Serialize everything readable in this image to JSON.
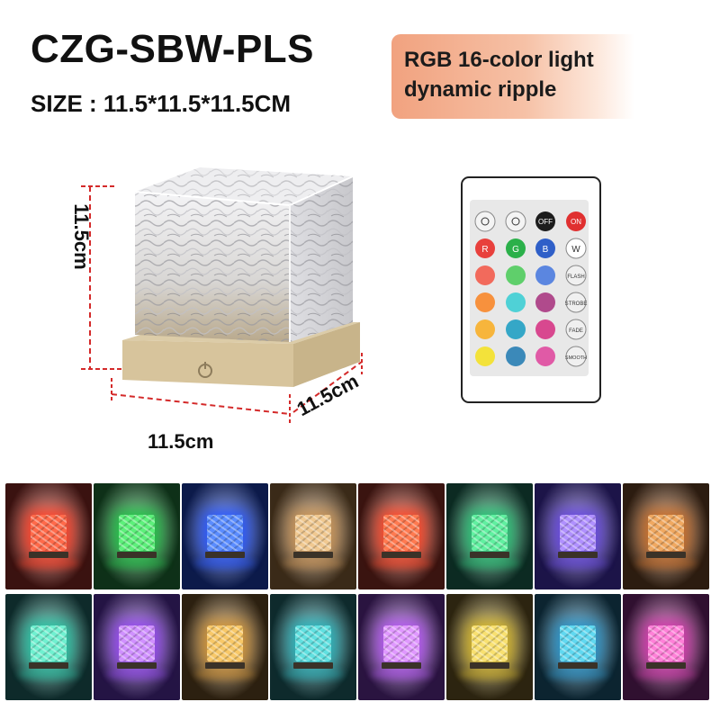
{
  "header": {
    "model": "CZG-SBW-PLS",
    "size": "SIZE : 11.5*11.5*11.5CM"
  },
  "badge": {
    "line1": "RGB 16-color light",
    "line2": "dynamic ripple"
  },
  "dimensions": {
    "height": "11.5cm",
    "width": "11.5cm",
    "depth": "11.5cm"
  },
  "remote": {
    "buttons": {
      "off": "OFF",
      "on": "ON",
      "r": "R",
      "g": "G",
      "b": "B",
      "w": "W",
      "flash": "FLASH",
      "strobe": "STROBE",
      "fade": "FADE",
      "smooth": "SMOOTH"
    },
    "colors": {
      "r": "#e8403c",
      "g": "#2bb04a",
      "b": "#2f5fc8",
      "row1": [
        "#f26a5c",
        "#5fcf6b",
        "#5b86e0"
      ],
      "row2": [
        "#f7913d",
        "#4fd1d6",
        "#b04a8c"
      ],
      "row3": [
        "#f7b53c",
        "#35a7c7",
        "#d8488f"
      ],
      "row4": [
        "#f3e23a",
        "#3b89b9",
        "#e05aa6"
      ]
    }
  },
  "swatches": {
    "row1": [
      {
        "bg": "#3a1210",
        "cube": "#ff6a4a",
        "glow": "#ff3a20"
      },
      {
        "bg": "#0e3018",
        "cube": "#5cf07a",
        "glow": "#18c040"
      },
      {
        "bg": "#0c1a4a",
        "cube": "#5a8cff",
        "glow": "#2050ff"
      },
      {
        "bg": "#3a2a18",
        "cube": "#f0c890",
        "glow": "#c89050"
      },
      {
        "bg": "#3a1410",
        "cube": "#ff7a50",
        "glow": "#ff4020"
      },
      {
        "bg": "#0c2a22",
        "cube": "#60f0a0",
        "glow": "#20c070"
      },
      {
        "bg": "#1c1448",
        "cube": "#b090ff",
        "glow": "#6040e0"
      },
      {
        "bg": "#2c1c10",
        "cube": "#f0a860",
        "glow": "#c86820"
      }
    ],
    "row2": [
      {
        "bg": "#0e2a2a",
        "cube": "#70f0d0",
        "glow": "#20c0a0"
      },
      {
        "bg": "#241444",
        "cube": "#d090ff",
        "glow": "#9040f0"
      },
      {
        "bg": "#2c2010",
        "cube": "#f8c868",
        "glow": "#d09030"
      },
      {
        "bg": "#0e2a2c",
        "cube": "#60e0e0",
        "glow": "#20b0b8"
      },
      {
        "bg": "#2a1440",
        "cube": "#e098ff",
        "glow": "#b050f0"
      },
      {
        "bg": "#2c2410",
        "cube": "#f8e070",
        "glow": "#d0b020"
      },
      {
        "bg": "#0c2430",
        "cube": "#60d8f0",
        "glow": "#2090c8"
      },
      {
        "bg": "#301030",
        "cube": "#ff80d8",
        "glow": "#d030a8"
      }
    ]
  }
}
